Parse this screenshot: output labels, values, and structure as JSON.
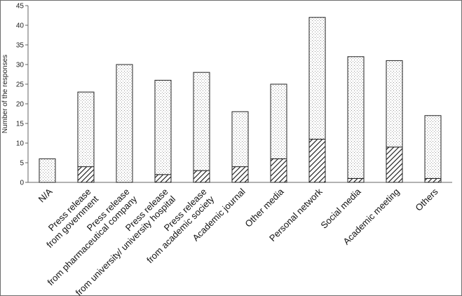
{
  "chart_data": {
    "type": "bar",
    "stacked": true,
    "title": "",
    "xlabel": "",
    "ylabel": "Number of the responses",
    "ylim": [
      0,
      45
    ],
    "yticks": [
      0,
      5,
      10,
      15,
      20,
      25,
      30,
      35,
      40,
      45
    ],
    "grid": false,
    "categories": [
      [
        "N/A"
      ],
      [
        "Press release",
        "from government"
      ],
      [
        "Press release",
        "from pharmaceutical company"
      ],
      [
        "Press release",
        "from university/ university hospital"
      ],
      [
        "Press release",
        "from academic society"
      ],
      [
        "Academic journal"
      ],
      [
        "Other media"
      ],
      [
        "Personal network"
      ],
      [
        "Social media"
      ],
      [
        "Academic meeting"
      ],
      [
        "Others"
      ]
    ],
    "series": [
      {
        "pattern": "hatched",
        "values": [
          0,
          4,
          0,
          2,
          3,
          4,
          6,
          11,
          1,
          9,
          1
        ]
      },
      {
        "pattern": "dotted",
        "values": [
          6,
          19,
          30,
          24,
          25,
          14,
          19,
          31,
          31,
          22,
          16
        ]
      }
    ],
    "totals": [
      6,
      23,
      30,
      26,
      28,
      18,
      25,
      42,
      32,
      31,
      17
    ]
  }
}
